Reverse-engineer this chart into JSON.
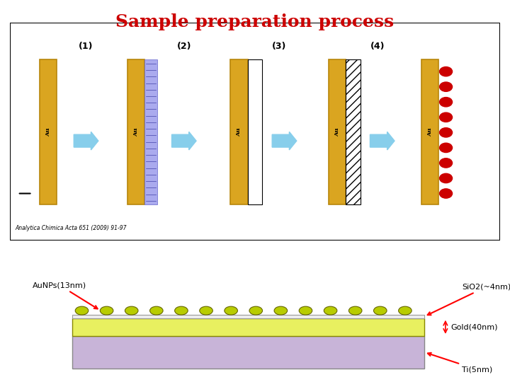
{
  "title": "Sample preparation process",
  "title_color": "#cc0000",
  "title_fontsize": 18,
  "bg_color": "#ffffff",
  "upper_box_color": "#ffffff",
  "upper_box_border": "#000000",
  "au_color": "#DAA520",
  "au_border": "#B8860B",
  "arrow_color": "#87CEEB",
  "mps_layer_color": "#9999ee",
  "sio2_layer_color": "#ffffff",
  "aunp_color": "#cc0000",
  "hatching_color": "#aaaaaa",
  "citation": "Analytica Chimica Acta 651 (2009) 91-97",
  "layers": {
    "ti_color": "#c8b4d8",
    "gold_color": "#e8f060",
    "sio2_color": "#ffffff",
    "gold_border": "#888800",
    "ti_border": "#888888"
  },
  "labels": {
    "aunps": "AuNPs(13nm)",
    "sio2": "SiO2(~4nm)",
    "gold": "Gold(40nm)",
    "ti": "Ti(5nm)"
  },
  "nanoparticle_color": "#b8cc00",
  "nanoparticle_border": "#666600"
}
